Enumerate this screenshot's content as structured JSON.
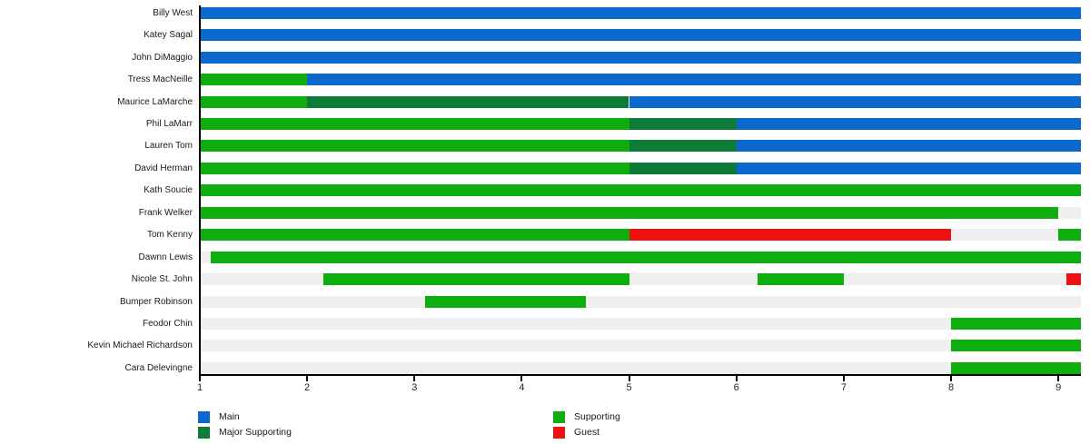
{
  "chart_data": {
    "type": "bar",
    "orientation": "horizontal",
    "title": "",
    "xlabel": "",
    "ylabel": "",
    "xlim": [
      1,
      9.21
    ],
    "x_ticks": [
      1,
      2,
      3,
      4,
      5,
      6,
      7,
      8,
      9
    ],
    "grid": false,
    "track_color": "#efefef",
    "roles": [
      {
        "name": "Main",
        "color": "#0b69ce"
      },
      {
        "name": "Major Supporting",
        "color": "#0e7a38"
      },
      {
        "name": "Supporting",
        "color": "#0dae0d"
      },
      {
        "name": "Guest",
        "color": "#ee1111"
      }
    ],
    "legend_columns": [
      [
        "Main",
        "Major Supporting"
      ],
      [
        "Supporting",
        "Guest"
      ]
    ],
    "rows": [
      {
        "name": "Billy West",
        "segments": [
          {
            "role": "Main",
            "start": 1,
            "end": 9.21
          }
        ]
      },
      {
        "name": "Katey Sagal",
        "segments": [
          {
            "role": "Main",
            "start": 1,
            "end": 9.21
          }
        ]
      },
      {
        "name": "John DiMaggio",
        "segments": [
          {
            "role": "Main",
            "start": 1,
            "end": 9.21
          }
        ]
      },
      {
        "name": "Tress MacNeille",
        "segments": [
          {
            "role": "Supporting",
            "start": 1,
            "end": 2
          },
          {
            "role": "Main",
            "start": 2,
            "end": 9.21
          }
        ]
      },
      {
        "name": "Maurice LaMarche",
        "segments": [
          {
            "role": "Supporting",
            "start": 1,
            "end": 2
          },
          {
            "role": "Major Supporting",
            "start": 2,
            "end": 5
          },
          {
            "role": "Main",
            "start": 5,
            "end": 9.21
          }
        ]
      },
      {
        "name": "Phil LaMarr",
        "segments": [
          {
            "role": "Supporting",
            "start": 1,
            "end": 5
          },
          {
            "role": "Major Supporting",
            "start": 5,
            "end": 6
          },
          {
            "role": "Main",
            "start": 6,
            "end": 9.21
          }
        ]
      },
      {
        "name": "Lauren Tom",
        "segments": [
          {
            "role": "Supporting",
            "start": 1,
            "end": 5
          },
          {
            "role": "Major Supporting",
            "start": 5,
            "end": 6
          },
          {
            "role": "Main",
            "start": 6,
            "end": 9.21
          }
        ]
      },
      {
        "name": "David Herman",
        "segments": [
          {
            "role": "Supporting",
            "start": 1,
            "end": 5
          },
          {
            "role": "Major Supporting",
            "start": 5,
            "end": 6
          },
          {
            "role": "Main",
            "start": 6,
            "end": 9.21
          }
        ]
      },
      {
        "name": "Kath Soucie",
        "segments": [
          {
            "role": "Supporting",
            "start": 1,
            "end": 9.21
          }
        ]
      },
      {
        "name": "Frank Welker",
        "segments": [
          {
            "role": "Supporting",
            "start": 1,
            "end": 9
          }
        ]
      },
      {
        "name": "Tom Kenny",
        "segments": [
          {
            "role": "Supporting",
            "start": 1,
            "end": 5
          },
          {
            "role": "Guest",
            "start": 5,
            "end": 8
          },
          {
            "role": "Supporting",
            "start": 9,
            "end": 9.21
          }
        ]
      },
      {
        "name": "Dawnn Lewis",
        "segments": [
          {
            "role": "Supporting",
            "start": 1.1,
            "end": 9.21
          }
        ]
      },
      {
        "name": "Nicole St. John",
        "segments": [
          {
            "role": "Supporting",
            "start": 2.15,
            "end": 5
          },
          {
            "role": "Supporting",
            "start": 6.2,
            "end": 7
          },
          {
            "role": "Guest",
            "start": 9.07,
            "end": 9.21
          }
        ]
      },
      {
        "name": "Bumper Robinson",
        "segments": [
          {
            "role": "Supporting",
            "start": 3.1,
            "end": 4.6
          }
        ]
      },
      {
        "name": "Feodor Chin",
        "segments": [
          {
            "role": "Supporting",
            "start": 8,
            "end": 9.21
          }
        ]
      },
      {
        "name": "Kevin Michael Richardson",
        "segments": [
          {
            "role": "Supporting",
            "start": 8,
            "end": 9.21
          }
        ]
      },
      {
        "name": "Cara Delevingne",
        "segments": [
          {
            "role": "Supporting",
            "start": 8,
            "end": 9.21
          }
        ]
      }
    ]
  }
}
